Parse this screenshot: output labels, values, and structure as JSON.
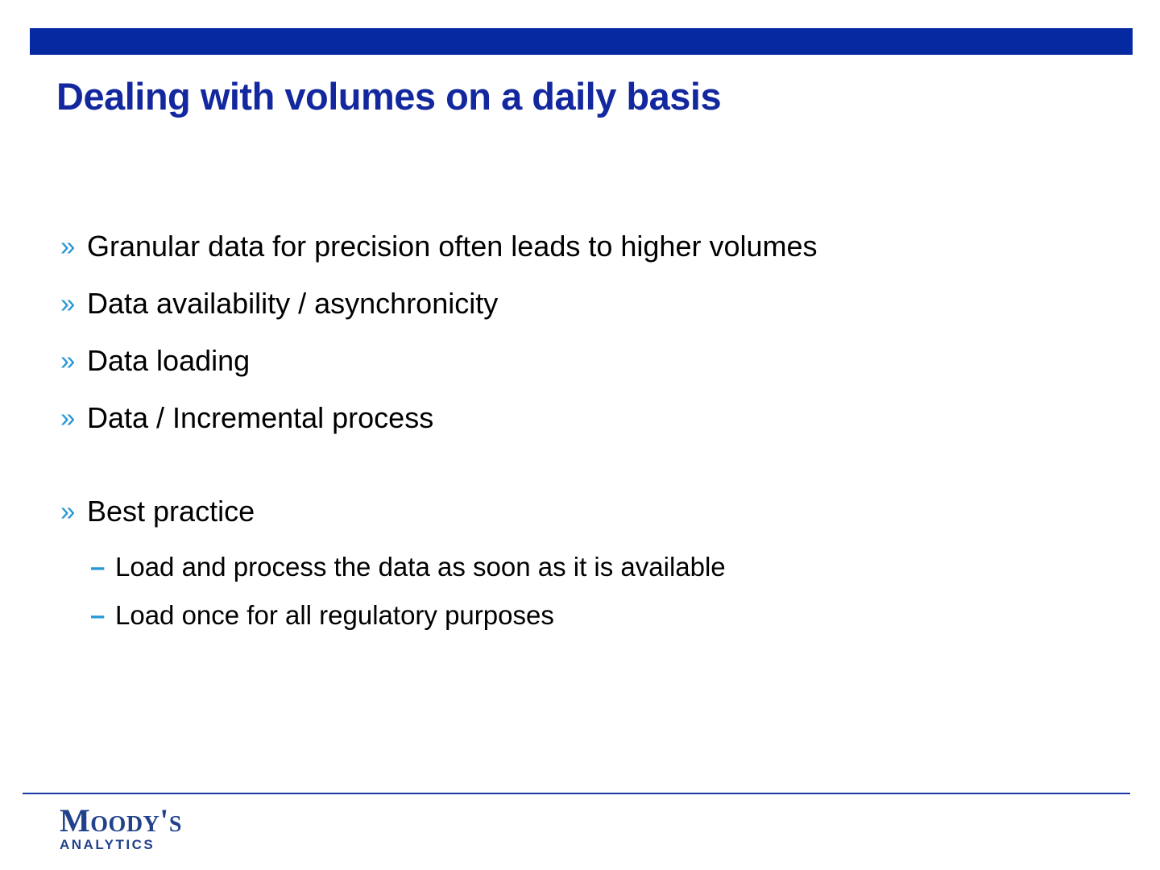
{
  "slide": {
    "title": "Dealing with volumes on a daily basis",
    "markers": {
      "bullet": "»",
      "sub_bullet": "–"
    },
    "bullets": [
      "Granular data for precision often leads to higher volumes",
      "Data availability / asynchronicity",
      "Data loading",
      "Data / Incremental process"
    ],
    "best_practice": {
      "label": "Best practice",
      "sub_bullets": [
        "Load and process the data as soon as it is available",
        "Load once for all regulatory purposes"
      ]
    },
    "footer": {
      "logo_primary": "Moody's",
      "logo_secondary": "ANALYTICS"
    },
    "colors": {
      "header_bar": "#0529A0",
      "title": "#13289E",
      "body_text": "#000000",
      "bullet_marker": "#2497D6",
      "footer_line": "#1C3AA5",
      "logo": "#21418C"
    }
  }
}
